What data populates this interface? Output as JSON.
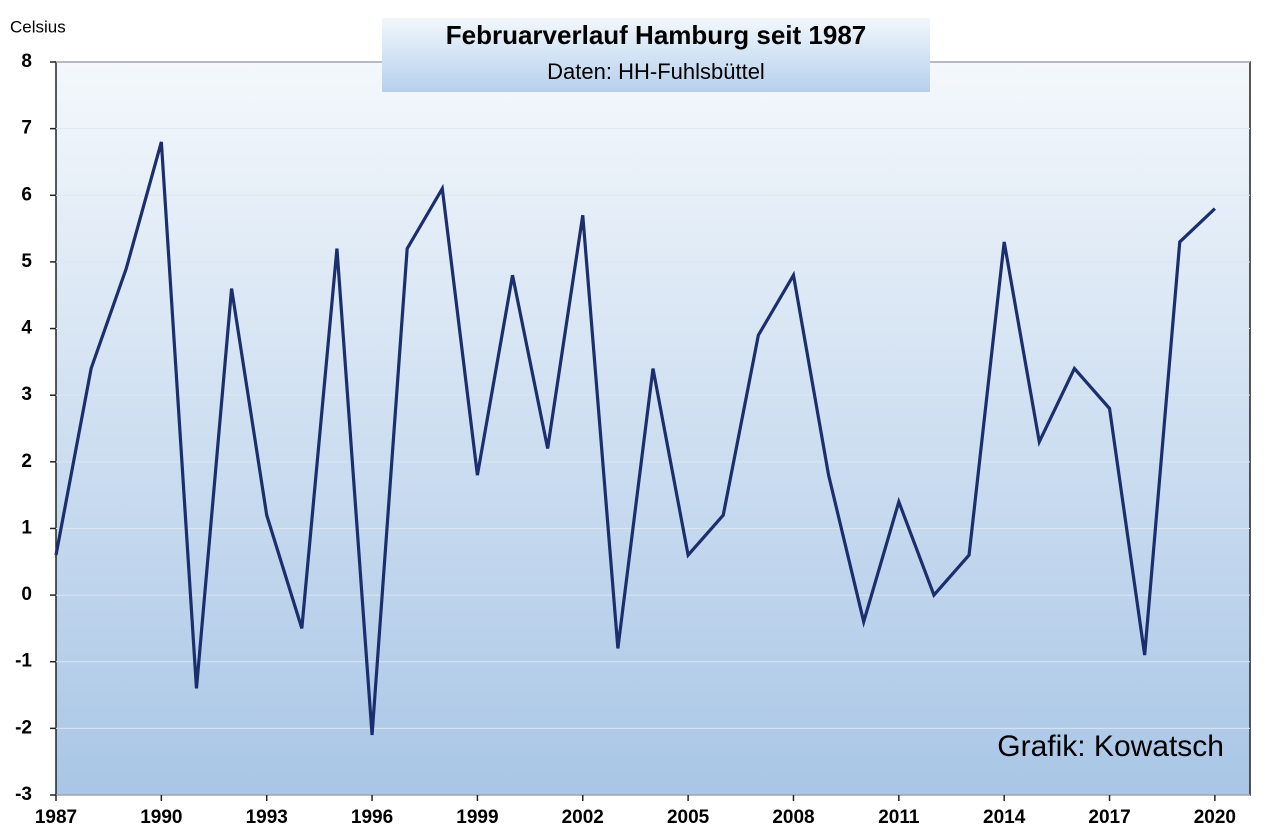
{
  "chart_data": {
    "type": "line",
    "title": "Februarverlauf Hamburg seit 1987",
    "subtitle": "Daten: HH-Fuhlsbüttel",
    "y_label": "Celsius",
    "annotation": "Grafik: Kowatsch",
    "x": [
      1987,
      1988,
      1989,
      1990,
      1991,
      1992,
      1993,
      1994,
      1995,
      1996,
      1997,
      1998,
      1999,
      2000,
      2001,
      2002,
      2003,
      2004,
      2005,
      2006,
      2007,
      2008,
      2009,
      2010,
      2011,
      2012,
      2013,
      2014,
      2015,
      2016,
      2017,
      2018,
      2019,
      2020
    ],
    "series": [
      {
        "name": "Februar",
        "color": "#1b2f6e",
        "values": [
          0.6,
          3.4,
          4.9,
          6.8,
          -1.4,
          4.6,
          1.2,
          -0.5,
          5.2,
          -2.1,
          5.2,
          6.1,
          1.8,
          4.8,
          2.2,
          5.7,
          -0.8,
          3.4,
          0.6,
          1.2,
          3.9,
          4.8,
          1.8,
          -0.4,
          1.4,
          0.0,
          0.6,
          5.3,
          2.3,
          3.4,
          2.8,
          -0.9,
          5.3,
          5.8
        ]
      }
    ],
    "xlim": [
      1987,
      2021
    ],
    "xticks": [
      1987,
      1990,
      1993,
      1996,
      1999,
      2002,
      2005,
      2008,
      2011,
      2014,
      2017,
      2020
    ],
    "ylim": [
      -3,
      8
    ],
    "yticks": [
      -3,
      -2,
      -1,
      0,
      1,
      2,
      3,
      4,
      5,
      6,
      7,
      8
    ],
    "grid": true
  }
}
